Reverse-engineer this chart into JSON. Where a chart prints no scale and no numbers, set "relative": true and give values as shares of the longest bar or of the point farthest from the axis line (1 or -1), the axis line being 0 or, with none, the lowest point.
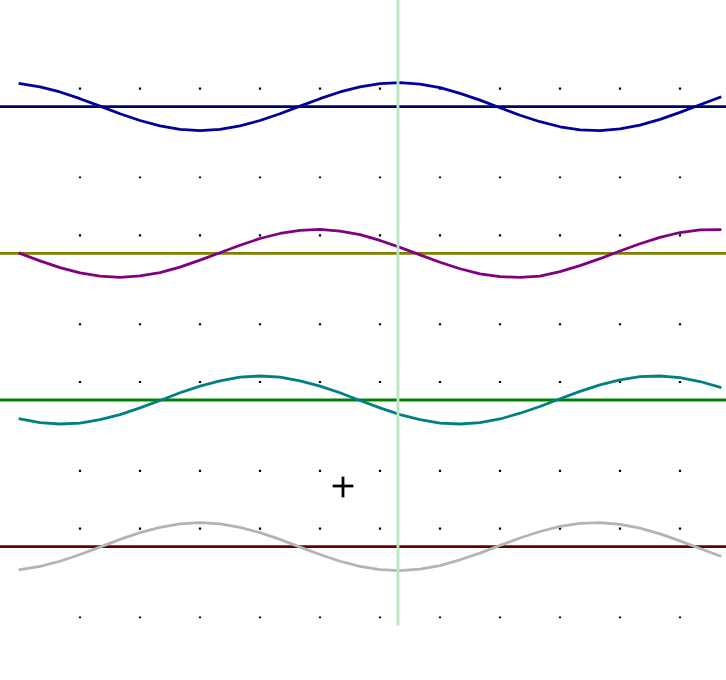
{
  "chart_data": [
    {
      "type": "line",
      "relative": true,
      "grid": "x",
      "categories": [
        null,
        null,
        null,
        null,
        null,
        null,
        null,
        null,
        null,
        null,
        null,
        null,
        null,
        null,
        null,
        null,
        null,
        null,
        null,
        null,
        null,
        null,
        null,
        null,
        null,
        null,
        null,
        null,
        null,
        null,
        null,
        null,
        null,
        null,
        null,
        null
      ],
      "series": [
        {
          "color": "#00009c",
          "values": [
            0.96,
            0.82,
            0.61,
            0.33,
            0.02,
            -0.3,
            -0.58,
            -0.8,
            -0.95,
            -1.0,
            -0.95,
            -0.8,
            -0.58,
            -0.3,
            0.02,
            0.33,
            0.61,
            0.82,
            0.96,
            1.0,
            0.94,
            0.79,
            0.55,
            0.27,
            -0.05,
            -0.36,
            -0.63,
            -0.84,
            -0.97,
            -1.0,
            -0.93,
            -0.77,
            -0.53,
            -0.24,
            0.08,
            0.39
          ]
        }
      ],
      "ref_lines": [
        {
          "axis": "y",
          "value": 0,
          "color": "#000060"
        }
      ]
    },
    {
      "type": "line",
      "relative": true,
      "grid": "x",
      "categories": [
        null,
        null,
        null,
        null,
        null,
        null,
        null,
        null,
        null,
        null,
        null,
        null,
        null,
        null,
        null,
        null,
        null,
        null,
        null,
        null,
        null,
        null,
        null,
        null,
        null,
        null,
        null,
        null,
        null,
        null,
        null,
        null,
        null,
        null,
        null,
        null
      ],
      "series": [
        {
          "color": "#800080",
          "values": [
            0,
            -0.31,
            -0.59,
            -0.81,
            -0.95,
            -1.0,
            -0.94,
            -0.8,
            -0.57,
            -0.28,
            0.03,
            0.34,
            0.62,
            0.83,
            0.96,
            1.0,
            0.93,
            0.78,
            0.54,
            0.25,
            -0.06,
            -0.37,
            -0.64,
            -0.85,
            -0.97,
            -1.0,
            -0.95,
            -0.76,
            -0.51,
            -0.22,
            0.1,
            0.4,
            0.67,
            0.87,
            0.98,
            0.99
          ]
        }
      ],
      "ref_lines": [
        {
          "axis": "y",
          "value": 0,
          "color": "#808000"
        }
      ]
    },
    {
      "type": "line",
      "relative": true,
      "grid": "x",
      "categories": [
        null,
        null,
        null,
        null,
        null,
        null,
        null,
        null,
        null,
        null,
        null,
        null,
        null,
        null,
        null,
        null,
        null,
        null,
        null,
        null,
        null,
        null,
        null,
        null,
        null,
        null,
        null,
        null,
        null,
        null,
        null,
        null,
        null,
        null,
        null,
        null
      ],
      "series": [
        {
          "color": "#008080",
          "values": [
            -0.79,
            -0.94,
            -1.0,
            -0.96,
            -0.82,
            -0.61,
            -0.33,
            -0.02,
            0.3,
            0.58,
            0.8,
            0.95,
            1.0,
            0.95,
            0.8,
            0.58,
            0.3,
            -0.02,
            -0.33,
            -0.61,
            -0.82,
            -0.96,
            -1.0,
            -0.94,
            -0.79,
            -0.55,
            -0.27,
            0.05,
            0.36,
            0.63,
            0.84,
            0.97,
            1.0,
            0.93,
            0.77,
            0.53
          ]
        }
      ],
      "ref_lines": [
        {
          "axis": "y",
          "value": 0,
          "color": "#008000"
        }
      ]
    },
    {
      "type": "line",
      "relative": true,
      "grid": "x",
      "categories": [
        null,
        null,
        null,
        null,
        null,
        null,
        null,
        null,
        null,
        null,
        null,
        null,
        null,
        null,
        null,
        null,
        null,
        null,
        null,
        null,
        null,
        null,
        null,
        null,
        null,
        null,
        null,
        null,
        null,
        null,
        null,
        null,
        null,
        null,
        null,
        null
      ],
      "series": [
        {
          "color": "#b4b4b4",
          "values": [
            -0.96,
            -0.82,
            -0.61,
            -0.33,
            -0.02,
            0.3,
            0.58,
            0.8,
            0.95,
            1.0,
            0.95,
            0.8,
            0.58,
            0.3,
            -0.02,
            -0.33,
            -0.61,
            -0.82,
            -0.96,
            -1.0,
            -0.94,
            -0.79,
            -0.55,
            -0.27,
            0.05,
            0.36,
            0.63,
            0.84,
            0.97,
            1.0,
            0.93,
            0.77,
            0.53,
            0.24,
            -0.08,
            -0.39
          ]
        }
      ],
      "ref_lines": [
        {
          "axis": "y",
          "value": 0,
          "color": "#600000"
        }
      ]
    }
  ]
}
